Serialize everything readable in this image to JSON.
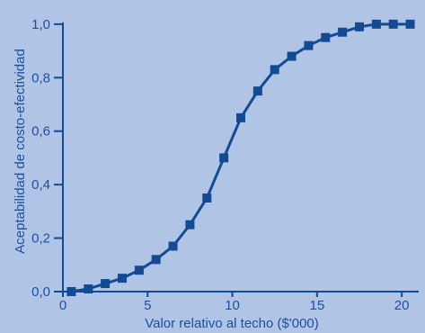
{
  "colors": {
    "background": "#b0c4e6",
    "series": "#124a94",
    "axis": "#124a94",
    "text": "#1f4f9c"
  },
  "chart_data": {
    "type": "line",
    "title": "",
    "xlabel": "Valor relativo al techo ($'000)",
    "ylabel": "Aceptabilidad de costo-efectividad",
    "xlim": [
      0,
      21
    ],
    "ylim": [
      0,
      1.05
    ],
    "grid": false,
    "x_ticks": [
      0,
      5,
      10,
      15,
      20
    ],
    "x_tick_labels": [
      "0",
      "5",
      "10",
      "15",
      "20"
    ],
    "y_ticks": [
      0,
      0.2,
      0.4,
      0.6,
      0.8,
      1.0
    ],
    "y_tick_labels": [
      "0,0",
      "0,2",
      "0,4",
      "0,6",
      "0,8",
      "1,0"
    ],
    "marker": "square",
    "series": [
      {
        "x": [
          0.5,
          1.5,
          2.5,
          3.5,
          4.5,
          5.5,
          6.5,
          7.5,
          8.5,
          9.5,
          10.5,
          11.5,
          12.5,
          13.5,
          14.5,
          15.5,
          16.5,
          17.5,
          18.5,
          19.5,
          20.5
        ],
        "y": [
          0.0,
          0.01,
          0.03,
          0.05,
          0.08,
          0.12,
          0.17,
          0.25,
          0.35,
          0.5,
          0.65,
          0.75,
          0.83,
          0.88,
          0.92,
          0.95,
          0.97,
          0.99,
          1.0,
          1.0,
          1.0
        ]
      }
    ]
  }
}
